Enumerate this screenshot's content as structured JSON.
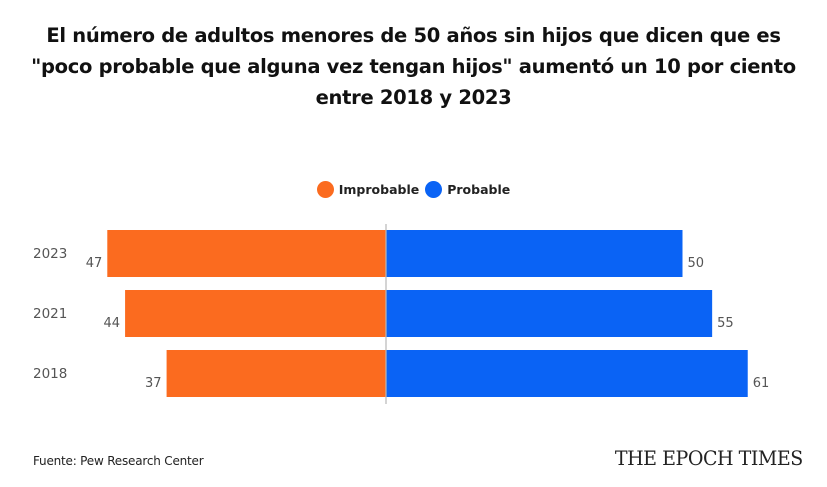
{
  "title": "El número de adultos menores de 50 años sin hijos que dicen que es \"poco probable que alguna vez tengan hijos\" aumentó un 10 por ciento entre 2018 y 2023",
  "source": "Fuente: Pew Research Center",
  "brand": "THE EPOCH TIMES",
  "colors": {
    "improbable": "#fb6b1f",
    "probable": "#0a63f5",
    "axis": "#b8b8b8",
    "label": "#555555"
  },
  "chart_data": {
    "type": "bar",
    "orientation": "horizontal-diverging",
    "title": "El número de adultos menores de 50 años sin hijos que dicen que es \"poco probable que alguna vez tengan hijos\" aumentó un 10 por ciento entre 2018 y 2023",
    "categories": [
      "2023",
      "2021",
      "2018"
    ],
    "series": [
      {
        "name": "Improbable",
        "values": [
          47,
          44,
          37
        ],
        "side": "left"
      },
      {
        "name": "Probable",
        "values": [
          50,
          55,
          61
        ],
        "side": "right"
      }
    ],
    "xlabel": "",
    "ylabel": "",
    "legend": "top-center",
    "grid": false,
    "data_labels": true
  }
}
